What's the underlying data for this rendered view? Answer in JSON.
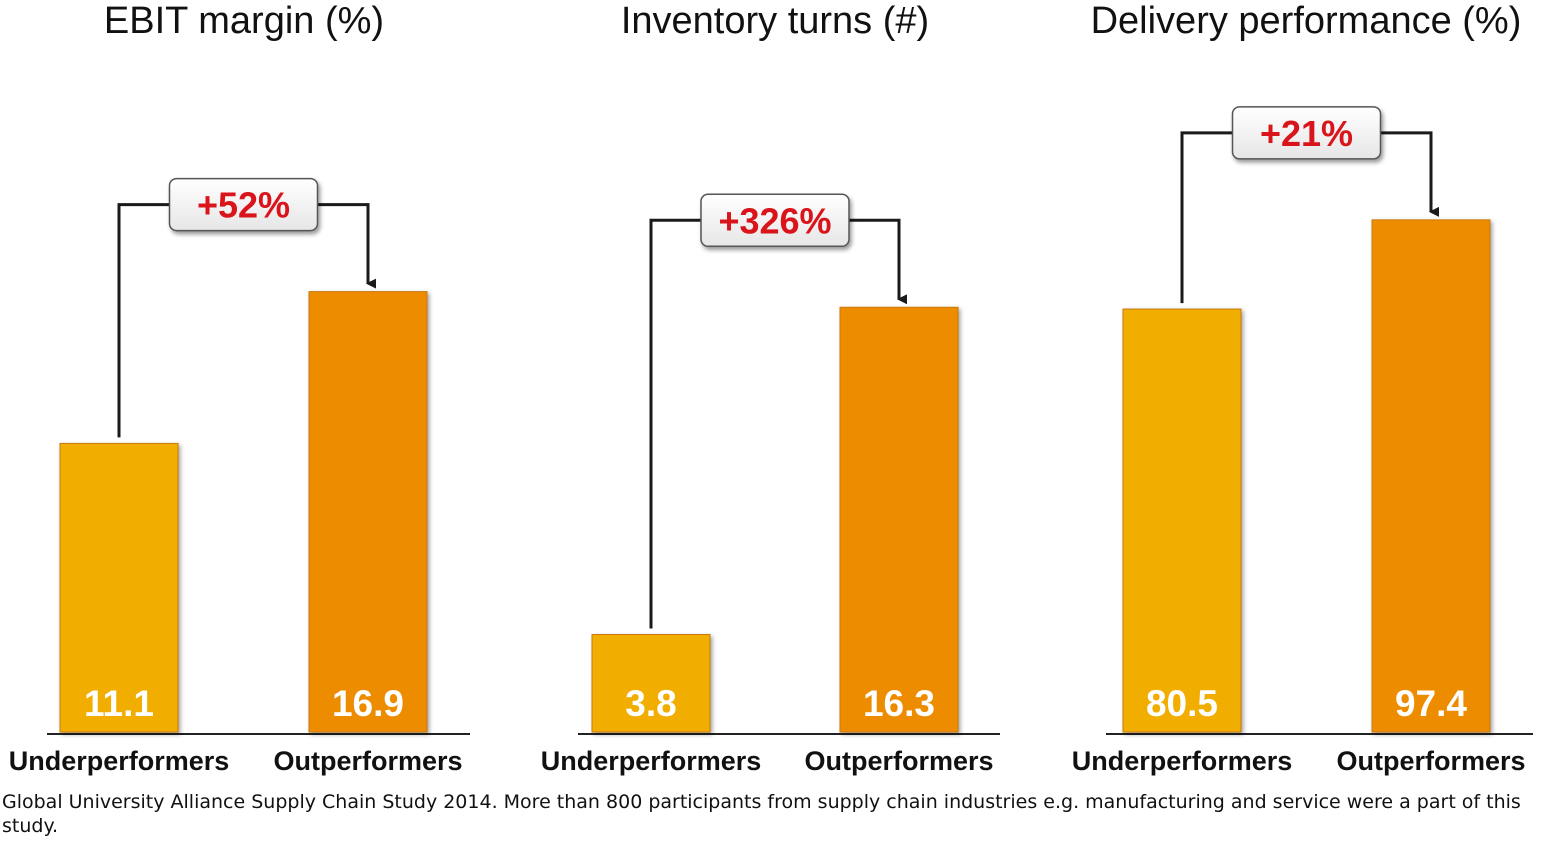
{
  "chart_data": [
    {
      "type": "bar",
      "title": "EBIT margin (%)",
      "categories": [
        "Underperformers",
        "Outperformers"
      ],
      "values": [
        11.1,
        16.9
      ],
      "value_labels": [
        "11.1",
        "16.9"
      ],
      "change_label": "+52%",
      "ylim": [
        0,
        24.6
      ],
      "grid": false
    },
    {
      "type": "bar",
      "title": "Inventory turns (#)",
      "categories": [
        "Underperformers",
        "Outperformers"
      ],
      "values": [
        3.8,
        16.3
      ],
      "value_labels": [
        "3.8",
        "16.3"
      ],
      "change_label": "+326%",
      "ylim": [
        0,
        24.6
      ],
      "grid": false
    },
    {
      "type": "bar",
      "title": "Delivery performance (%)",
      "categories": [
        "Underperformers",
        "Outperformers"
      ],
      "values": [
        80.5,
        97.4
      ],
      "value_labels": [
        "80.5",
        "97.4"
      ],
      "change_label": "+21%",
      "ylim": [
        0,
        122
      ],
      "grid": false
    }
  ],
  "colors": {
    "underperformer_bar": "#F2AE06",
    "outperformer_bar": "#EE8C02",
    "change_text": "#D9151B",
    "connector": "#1a1a1a"
  },
  "footnote": "Global University Alliance Supply Chain Study 2014. More than 800 participants from supply chain industries e.g. manufacturing and service were a part of this study."
}
